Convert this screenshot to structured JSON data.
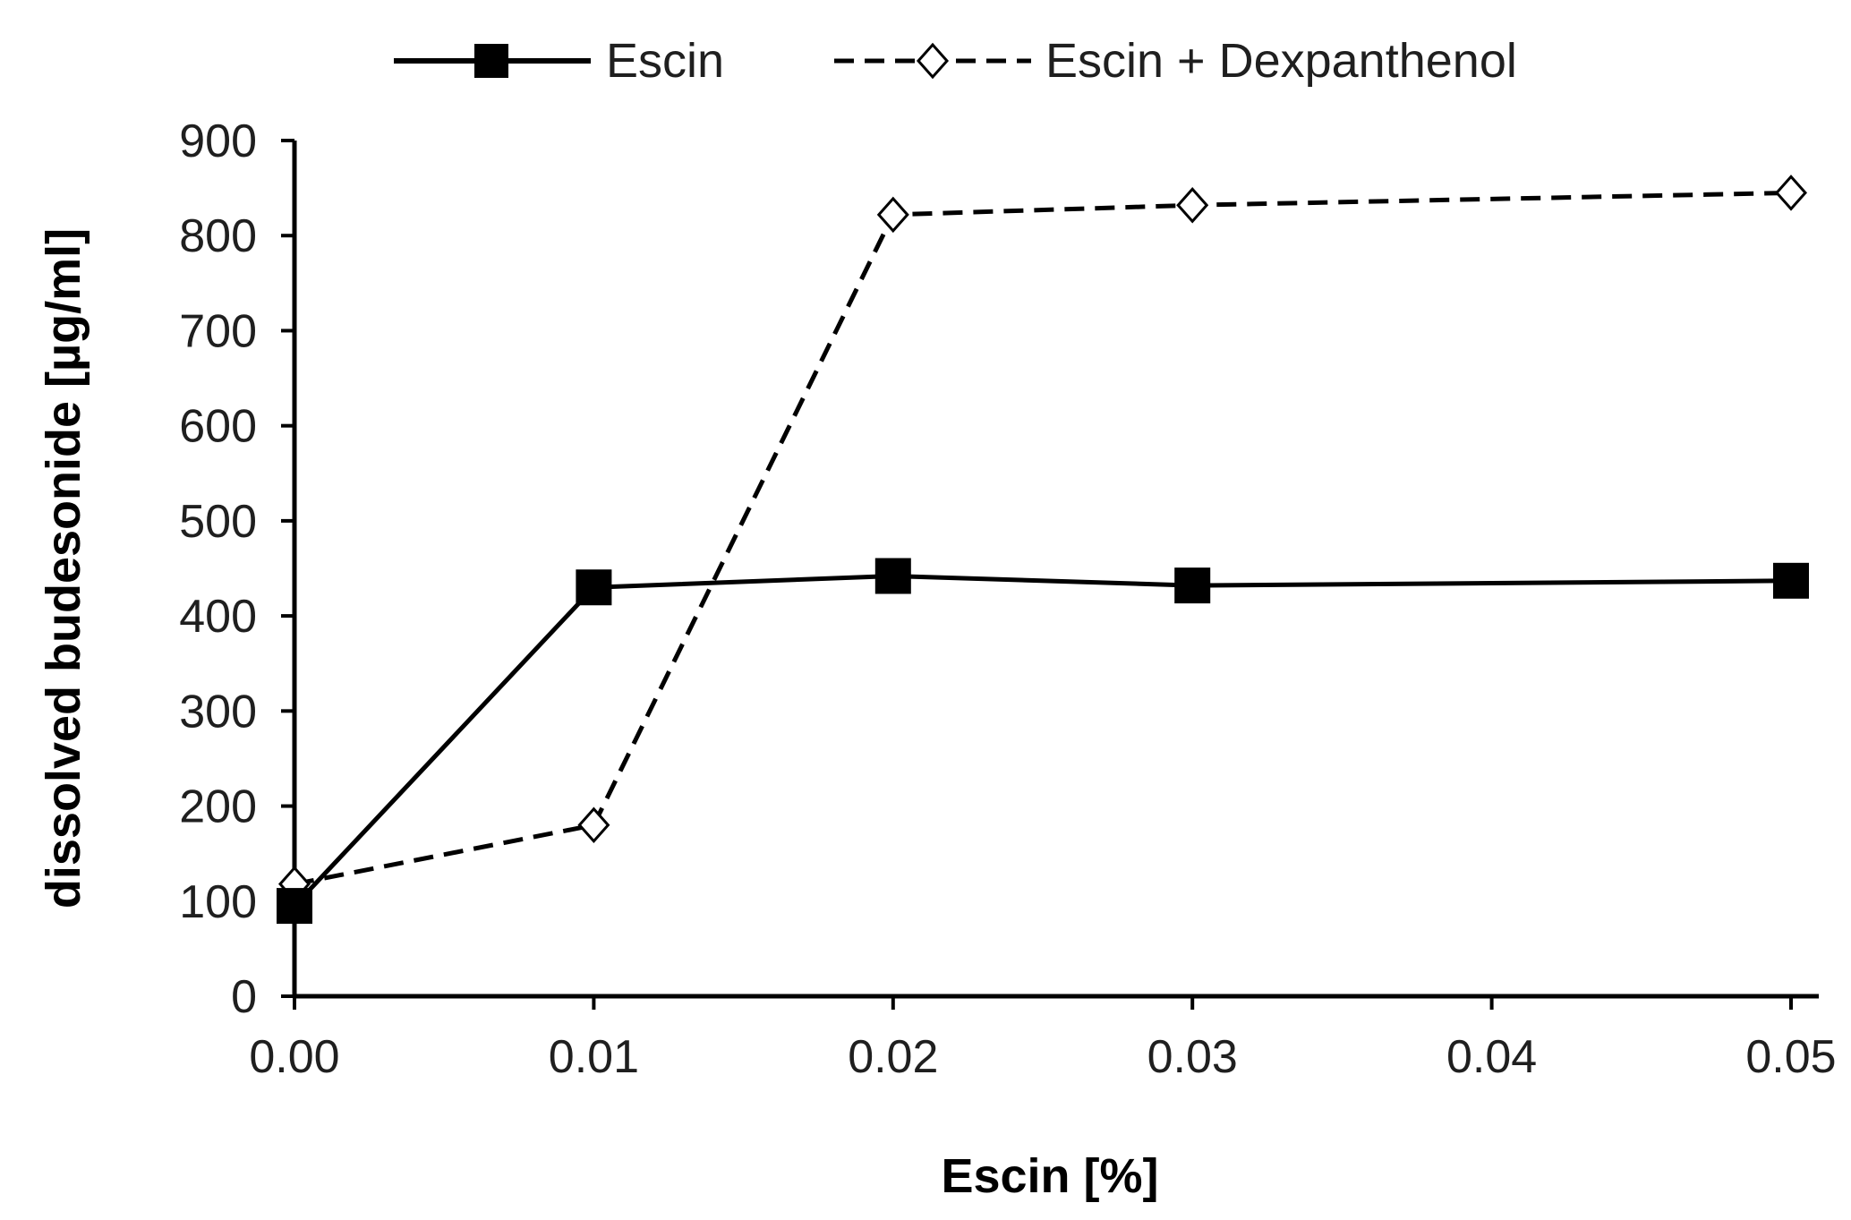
{
  "chart_data": {
    "type": "line",
    "x": [
      0.0,
      0.01,
      0.02,
      0.03,
      0.05
    ],
    "x_tick_labels": [
      "0.00",
      "0.01",
      "0.02",
      "0.03",
      "0.04",
      "0.05"
    ],
    "x_ticks": [
      0.0,
      0.01,
      0.02,
      0.03,
      0.04,
      0.05
    ],
    "y_ticks": [
      0,
      100,
      200,
      300,
      400,
      500,
      600,
      700,
      800,
      900
    ],
    "y_tick_labels": [
      "0",
      "100",
      "200",
      "300",
      "400",
      "500",
      "600",
      "700",
      "800",
      "900"
    ],
    "xlim": [
      0,
      0.05
    ],
    "ylim": [
      0,
      900
    ],
    "xlabel": "Escin [%]",
    "ylabel": "dissolved budesonide [µg/ml]",
    "grid": false,
    "legend_position": "top",
    "series": [
      {
        "name": "Escin",
        "values": [
          95,
          430,
          442,
          432,
          437
        ],
        "line_style": "solid",
        "marker": "filled-square",
        "color": "#000000"
      },
      {
        "name": "Escin + Dexpanthenol",
        "values": [
          118,
          180,
          822,
          832,
          845
        ],
        "line_style": "dashed",
        "marker": "open-diamond",
        "color": "#000000"
      }
    ]
  }
}
